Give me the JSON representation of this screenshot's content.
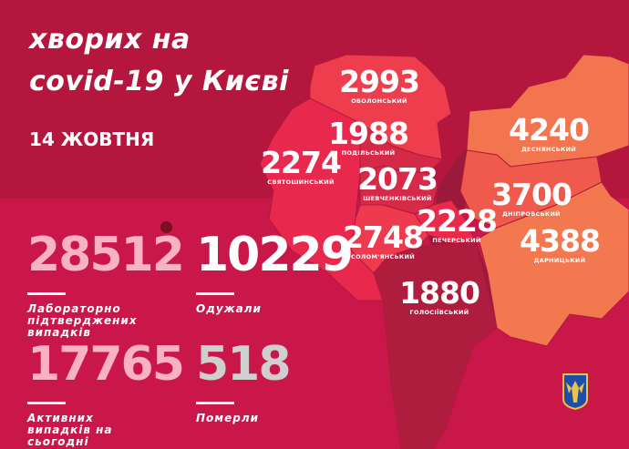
{
  "header": {
    "title_line1": "хворих на",
    "title_line2": "covid-19 у Києві",
    "date": "14 ЖОВТНЯ"
  },
  "stats": [
    {
      "value": "28512",
      "label": "Лабораторно підтверджених випадків",
      "color": "#f9b1c4"
    },
    {
      "value": "10229",
      "label": "Одужали",
      "color": "#ffffff"
    },
    {
      "value": "17765",
      "label": "Активних випадків на сьогодні",
      "color": "#f9b1c4"
    },
    {
      "value": "518",
      "label": "Померли",
      "color": "#cfcfcf"
    }
  ],
  "districts": [
    {
      "name": "ОБОЛОНСЬКИЙ",
      "value": "2993",
      "color": "#ee3d4c"
    },
    {
      "name": "ПОДІЛЬСЬКИЙ",
      "value": "1988",
      "color": "#d42a47"
    },
    {
      "name": "СВЯТОШИНСЬКИЙ",
      "value": "2274",
      "color": "#e8284c"
    },
    {
      "name": "ШЕВЧЕНКІВСЬКИЙ",
      "value": "2073",
      "color": "#d72a48"
    },
    {
      "name": "СОЛОМ'ЯНСЬКИЙ",
      "value": "2748",
      "color": "#ee3a4e"
    },
    {
      "name": "ПЕЧЕРСЬКИЙ",
      "value": "2228",
      "color": "#e92a4a"
    },
    {
      "name": "ГОЛОСІЇВСЬКИЙ",
      "value": "1880",
      "color": "#ae1c3e"
    },
    {
      "name": "ДЕСНЯНСЬКИЙ",
      "value": "4240",
      "color": "#f3754f"
    },
    {
      "name": "ДНІПРОВСЬКИЙ",
      "value": "3700",
      "color": "#f05a4c"
    },
    {
      "name": "ДАРНИЦЬКИЙ",
      "value": "4388",
      "color": "#f3774f"
    }
  ],
  "colors": {
    "background": "#b5163e",
    "band": "#c9174a",
    "river": "#9b1a3c"
  },
  "icons": {
    "virus": "virus-icon",
    "coat_of_arms": "kyiv-coat-of-arms-icon"
  }
}
